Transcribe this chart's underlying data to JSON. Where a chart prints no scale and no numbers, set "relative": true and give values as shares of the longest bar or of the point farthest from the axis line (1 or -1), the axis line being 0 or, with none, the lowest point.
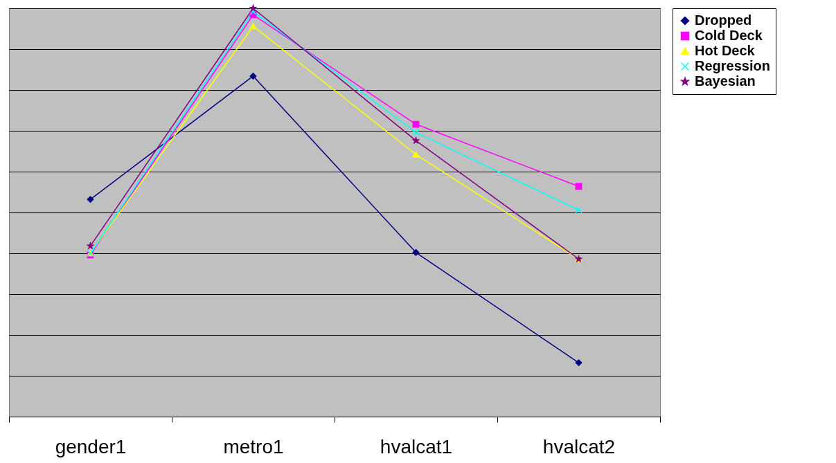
{
  "chart_data": {
    "type": "line",
    "relative": true,
    "grid": "y",
    "legend": "right",
    "categories": [
      "gender1",
      "metro1",
      "hvalcat1",
      "hvalcat2"
    ],
    "series": [
      {
        "name": "Dropped",
        "color": "#000080",
        "marker": "diamond",
        "values": [
          0.532,
          0.834,
          0.402,
          0.132
        ]
      },
      {
        "name": "Cold Deck",
        "color": "#ff00ff",
        "marker": "square",
        "values": [
          0.396,
          0.984,
          0.716,
          0.564
        ]
      },
      {
        "name": "Hot Deck",
        "color": "#ffff00",
        "marker": "triangle",
        "values": [
          0.4,
          0.956,
          0.642,
          0.386
        ]
      },
      {
        "name": "Regression",
        "color": "#00ffff",
        "marker": "cross",
        "values": [
          0.4,
          0.992,
          0.696,
          0.506
        ]
      },
      {
        "name": "Bayesian",
        "color": "#800080",
        "marker": "star",
        "values": [
          0.418,
          1.0,
          0.676,
          0.386
        ]
      }
    ]
  }
}
